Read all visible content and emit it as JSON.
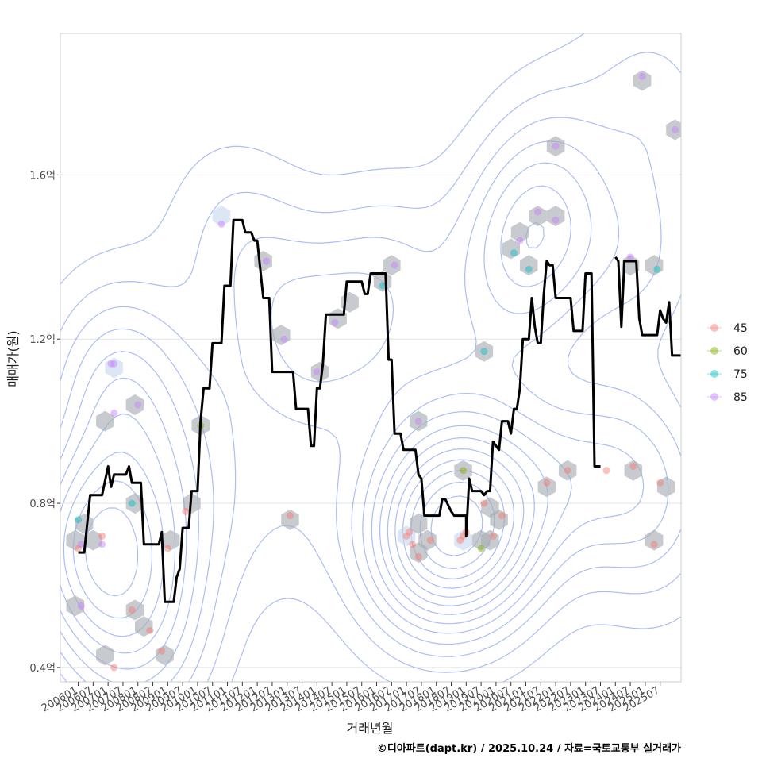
{
  "chart_data": {
    "type": "line",
    "title": "",
    "xlabel": "거래년월",
    "ylabel": "매매가(원)",
    "caption": "©디아파트(dapt.kr) / 2025.10.24 / 자료=국토교통부 실거래가",
    "x_ticks": [
      "200601",
      "200607",
      "200701",
      "200707",
      "200801",
      "200807",
      "200901",
      "200907",
      "201001",
      "201007",
      "201101",
      "201107",
      "201201",
      "201207",
      "201301",
      "201307",
      "201401",
      "201407",
      "201501",
      "201507",
      "201601",
      "201607",
      "201701",
      "201707",
      "201801",
      "201807",
      "201901",
      "201907",
      "202001",
      "202007",
      "202101",
      "202107",
      "202201",
      "202207",
      "202301",
      "202307",
      "202401",
      "202407",
      "202501",
      "202507"
    ],
    "y_ticks": [
      {
        "value": 0.4,
        "label": "0.4억"
      },
      {
        "value": 0.8,
        "label": "0.8억"
      },
      {
        "value": 1.2,
        "label": "1.2억"
      },
      {
        "value": 1.6,
        "label": "1.6억"
      }
    ],
    "xlim": [
      2005.4,
      2026.2
    ],
    "ylim": [
      0.365,
      1.945
    ],
    "grid": true,
    "legend_position": "right",
    "legend": [
      {
        "label": "45",
        "color": "#F8766D"
      },
      {
        "label": "60",
        "color": "#7CAE00"
      },
      {
        "label": "75",
        "color": "#00BFC4"
      },
      {
        "label": "85",
        "color": "#C77CFF"
      }
    ],
    "line_color": "#000000",
    "contour_color": "#8fa8ee",
    "hex_color": "#a9aeb3",
    "series_avg": [
      [
        2006.0,
        0.68
      ],
      [
        2006.2,
        0.68
      ],
      [
        2006.4,
        0.82
      ],
      [
        2006.8,
        0.82
      ],
      [
        2007.0,
        0.89
      ],
      [
        2007.1,
        0.84
      ],
      [
        2007.2,
        0.87
      ],
      [
        2007.6,
        0.87
      ],
      [
        2007.7,
        0.89
      ],
      [
        2007.8,
        0.85
      ],
      [
        2008.1,
        0.85
      ],
      [
        2008.2,
        0.7
      ],
      [
        2008.7,
        0.7
      ],
      [
        2008.8,
        0.73
      ],
      [
        2008.9,
        0.56
      ],
      [
        2009.2,
        0.56
      ],
      [
        2009.3,
        0.62
      ],
      [
        2009.4,
        0.64
      ],
      [
        2009.5,
        0.74
      ],
      [
        2009.7,
        0.74
      ],
      [
        2009.8,
        0.83
      ],
      [
        2010.0,
        0.83
      ],
      [
        2010.1,
        1.0
      ],
      [
        2010.2,
        1.08
      ],
      [
        2010.4,
        1.08
      ],
      [
        2010.5,
        1.19
      ],
      [
        2010.8,
        1.19
      ],
      [
        2010.9,
        1.33
      ],
      [
        2011.1,
        1.33
      ],
      [
        2011.2,
        1.49
      ],
      [
        2011.5,
        1.49
      ],
      [
        2011.6,
        1.46
      ],
      [
        2011.8,
        1.46
      ],
      [
        2011.9,
        1.44
      ],
      [
        2012.0,
        1.44
      ],
      [
        2012.1,
        1.37
      ],
      [
        2012.2,
        1.3
      ],
      [
        2012.4,
        1.3
      ],
      [
        2012.5,
        1.12
      ],
      [
        2013.2,
        1.12
      ],
      [
        2013.3,
        1.03
      ],
      [
        2013.7,
        1.03
      ],
      [
        2013.8,
        0.94
      ],
      [
        2013.9,
        0.94
      ],
      [
        2014.0,
        1.08
      ],
      [
        2014.1,
        1.08
      ],
      [
        2014.2,
        1.14
      ],
      [
        2014.3,
        1.26
      ],
      [
        2014.9,
        1.26
      ],
      [
        2015.0,
        1.34
      ],
      [
        2015.5,
        1.34
      ],
      [
        2015.6,
        1.31
      ],
      [
        2015.7,
        1.31
      ],
      [
        2015.8,
        1.36
      ],
      [
        2016.3,
        1.36
      ],
      [
        2016.4,
        1.15
      ],
      [
        2016.5,
        1.15
      ],
      [
        2016.6,
        0.97
      ],
      [
        2016.8,
        0.97
      ],
      [
        2016.9,
        0.93
      ],
      [
        2017.3,
        0.93
      ],
      [
        2017.4,
        0.87
      ],
      [
        2017.5,
        0.86
      ],
      [
        2017.6,
        0.77
      ],
      [
        2018.1,
        0.77
      ],
      [
        2018.2,
        0.81
      ],
      [
        2018.3,
        0.81
      ],
      [
        2018.5,
        0.78
      ],
      [
        2018.6,
        0.77
      ],
      [
        2019.0,
        0.77
      ],
      [
        2019.0,
        0.72
      ],
      [
        2019.1,
        0.86
      ],
      [
        2019.2,
        0.83
      ],
      [
        2019.5,
        0.83
      ],
      [
        2019.6,
        0.82
      ],
      [
        2019.7,
        0.83
      ],
      [
        2019.8,
        0.83
      ],
      [
        2019.9,
        0.95
      ],
      [
        2020.1,
        0.93
      ],
      [
        2020.2,
        1.0
      ],
      [
        2020.4,
        1.0
      ],
      [
        2020.5,
        0.97
      ],
      [
        2020.6,
        1.03
      ],
      [
        2020.7,
        1.03
      ],
      [
        2020.8,
        1.08
      ],
      [
        2020.9,
        1.2
      ],
      [
        2021.1,
        1.2
      ],
      [
        2021.2,
        1.3
      ],
      [
        2021.3,
        1.23
      ],
      [
        2021.4,
        1.19
      ],
      [
        2021.5,
        1.19
      ],
      [
        2021.6,
        1.31
      ],
      [
        2021.7,
        1.39
      ],
      [
        2021.8,
        1.38
      ],
      [
        2021.9,
        1.38
      ],
      [
        2022.0,
        1.3
      ],
      [
        2022.5,
        1.3
      ],
      [
        2022.6,
        1.22
      ],
      [
        2022.9,
        1.22
      ],
      [
        2023.0,
        1.36
      ],
      [
        2023.2,
        1.36
      ],
      [
        2023.3,
        0.89
      ],
      [
        2023.5,
        0.89
      ]
    ],
    "series_avg_2": [
      [
        2024.0,
        1.4
      ],
      [
        2024.1,
        1.39
      ],
      [
        2024.2,
        1.23
      ],
      [
        2024.3,
        1.39
      ],
      [
        2024.7,
        1.39
      ],
      [
        2024.8,
        1.25
      ],
      [
        2024.9,
        1.21
      ],
      [
        2025.4,
        1.21
      ],
      [
        2025.5,
        1.27
      ],
      [
        2025.6,
        1.25
      ],
      [
        2025.7,
        1.24
      ],
      [
        2025.8,
        1.29
      ],
      [
        2025.9,
        1.16
      ],
      [
        2026.2,
        1.16
      ]
    ],
    "points": [
      {
        "x": 2006.0,
        "y": 0.69,
        "size": "45"
      },
      {
        "x": 2006.0,
        "y": 0.76,
        "size": "75"
      },
      {
        "x": 2006.1,
        "y": 0.7,
        "size": "85"
      },
      {
        "x": 2006.1,
        "y": 0.55,
        "size": "85"
      },
      {
        "x": 2006.8,
        "y": 0.7,
        "size": "85"
      },
      {
        "x": 2006.8,
        "y": 0.72,
        "size": "45"
      },
      {
        "x": 2007.1,
        "y": 1.14,
        "size": "85"
      },
      {
        "x": 2007.2,
        "y": 1.14,
        "size": "85"
      },
      {
        "x": 2007.2,
        "y": 1.02,
        "size": "85"
      },
      {
        "x": 2007.2,
        "y": 0.4,
        "size": "45"
      },
      {
        "x": 2007.8,
        "y": 0.8,
        "size": "75"
      },
      {
        "x": 2007.8,
        "y": 0.54,
        "size": "45"
      },
      {
        "x": 2008.0,
        "y": 1.04,
        "size": "85"
      },
      {
        "x": 2008.4,
        "y": 0.49,
        "size": "45"
      },
      {
        "x": 2008.8,
        "y": 0.44,
        "size": "45"
      },
      {
        "x": 2009.0,
        "y": 0.69,
        "size": "45"
      },
      {
        "x": 2009.6,
        "y": 0.78,
        "size": "45"
      },
      {
        "x": 2010.1,
        "y": 0.99,
        "size": "60"
      },
      {
        "x": 2010.8,
        "y": 1.48,
        "size": "85"
      },
      {
        "x": 2012.3,
        "y": 1.39,
        "size": "85"
      },
      {
        "x": 2012.9,
        "y": 1.2,
        "size": "85"
      },
      {
        "x": 2013.1,
        "y": 0.77,
        "size": "45"
      },
      {
        "x": 2014.0,
        "y": 1.12,
        "size": "85"
      },
      {
        "x": 2014.6,
        "y": 1.24,
        "size": "85"
      },
      {
        "x": 2016.2,
        "y": 1.33,
        "size": "75"
      },
      {
        "x": 2016.6,
        "y": 1.38,
        "size": "85"
      },
      {
        "x": 2017.0,
        "y": 0.72,
        "size": "45"
      },
      {
        "x": 2017.1,
        "y": 0.73,
        "size": "45"
      },
      {
        "x": 2017.2,
        "y": 0.7,
        "size": "45"
      },
      {
        "x": 2017.4,
        "y": 0.67,
        "size": "45"
      },
      {
        "x": 2017.4,
        "y": 1.0,
        "size": "85"
      },
      {
        "x": 2017.8,
        "y": 0.71,
        "size": "45"
      },
      {
        "x": 2018.8,
        "y": 0.71,
        "size": "45"
      },
      {
        "x": 2018.9,
        "y": 0.72,
        "size": "45"
      },
      {
        "x": 2019.0,
        "y": 0.73,
        "size": "45"
      },
      {
        "x": 2018.9,
        "y": 0.88,
        "size": "60"
      },
      {
        "x": 2019.5,
        "y": 0.69,
        "size": "60"
      },
      {
        "x": 2019.6,
        "y": 0.8,
        "size": "45"
      },
      {
        "x": 2019.6,
        "y": 1.17,
        "size": "75"
      },
      {
        "x": 2019.9,
        "y": 0.72,
        "size": "45"
      },
      {
        "x": 2020.2,
        "y": 0.77,
        "size": "45"
      },
      {
        "x": 2020.6,
        "y": 1.41,
        "size": "75"
      },
      {
        "x": 2020.8,
        "y": 1.44,
        "size": "85"
      },
      {
        "x": 2021.1,
        "y": 1.37,
        "size": "75"
      },
      {
        "x": 2021.4,
        "y": 1.51,
        "size": "85"
      },
      {
        "x": 2021.7,
        "y": 0.85,
        "size": "45"
      },
      {
        "x": 2022.0,
        "y": 1.49,
        "size": "85"
      },
      {
        "x": 2022.0,
        "y": 1.67,
        "size": "85"
      },
      {
        "x": 2022.4,
        "y": 0.88,
        "size": "45"
      },
      {
        "x": 2023.7,
        "y": 0.88,
        "size": "45"
      },
      {
        "x": 2024.5,
        "y": 1.4,
        "size": "85"
      },
      {
        "x": 2024.6,
        "y": 0.89,
        "size": "45"
      },
      {
        "x": 2024.9,
        "y": 1.84,
        "size": "85"
      },
      {
        "x": 2025.3,
        "y": 0.7,
        "size": "45"
      },
      {
        "x": 2025.4,
        "y": 1.37,
        "size": "75"
      },
      {
        "x": 2025.5,
        "y": 0.85,
        "size": "45"
      },
      {
        "x": 2026.0,
        "y": 1.71,
        "size": "85"
      }
    ],
    "hexbins": [
      {
        "x": 2005.9,
        "y": 0.71,
        "n": 3
      },
      {
        "x": 2006.2,
        "y": 0.75,
        "n": 3
      },
      {
        "x": 2006.5,
        "y": 0.71,
        "n": 2
      },
      {
        "x": 2005.9,
        "y": 0.55,
        "n": 2
      },
      {
        "x": 2006.9,
        "y": 1.0,
        "n": 2
      },
      {
        "x": 2007.2,
        "y": 1.13,
        "n": 1
      },
      {
        "x": 2006.9,
        "y": 0.43,
        "n": 2
      },
      {
        "x": 2007.9,
        "y": 1.04,
        "n": 2
      },
      {
        "x": 2007.9,
        "y": 0.8,
        "n": 2
      },
      {
        "x": 2007.9,
        "y": 0.54,
        "n": 2
      },
      {
        "x": 2008.2,
        "y": 0.5,
        "n": 2
      },
      {
        "x": 2008.9,
        "y": 0.43,
        "n": 2
      },
      {
        "x": 2009.1,
        "y": 0.71,
        "n": 2
      },
      {
        "x": 2009.8,
        "y": 0.8,
        "n": 2
      },
      {
        "x": 2010.1,
        "y": 0.99,
        "n": 2
      },
      {
        "x": 2010.8,
        "y": 1.5,
        "n": 1
      },
      {
        "x": 2012.2,
        "y": 1.39,
        "n": 2
      },
      {
        "x": 2012.8,
        "y": 1.21,
        "n": 2
      },
      {
        "x": 2013.1,
        "y": 0.76,
        "n": 2
      },
      {
        "x": 2014.1,
        "y": 1.12,
        "n": 2
      },
      {
        "x": 2014.7,
        "y": 1.25,
        "n": 2
      },
      {
        "x": 2015.1,
        "y": 1.29,
        "n": 2
      },
      {
        "x": 2016.2,
        "y": 1.34,
        "n": 2
      },
      {
        "x": 2016.5,
        "y": 1.38,
        "n": 2
      },
      {
        "x": 2017.0,
        "y": 0.72,
        "n": 1
      },
      {
        "x": 2017.4,
        "y": 0.75,
        "n": 2
      },
      {
        "x": 2017.7,
        "y": 0.71,
        "n": 2
      },
      {
        "x": 2017.4,
        "y": 0.68,
        "n": 2
      },
      {
        "x": 2017.4,
        "y": 1.0,
        "n": 2
      },
      {
        "x": 2018.9,
        "y": 0.88,
        "n": 2
      },
      {
        "x": 2018.9,
        "y": 0.71,
        "n": 1
      },
      {
        "x": 2019.5,
        "y": 0.71,
        "n": 2
      },
      {
        "x": 2019.8,
        "y": 0.71,
        "n": 2
      },
      {
        "x": 2019.8,
        "y": 0.79,
        "n": 2
      },
      {
        "x": 2020.1,
        "y": 0.76,
        "n": 2
      },
      {
        "x": 2019.6,
        "y": 1.17,
        "n": 2
      },
      {
        "x": 2020.5,
        "y": 1.42,
        "n": 2
      },
      {
        "x": 2020.8,
        "y": 1.46,
        "n": 2
      },
      {
        "x": 2021.1,
        "y": 1.38,
        "n": 2
      },
      {
        "x": 2021.4,
        "y": 1.5,
        "n": 2
      },
      {
        "x": 2021.7,
        "y": 0.84,
        "n": 2
      },
      {
        "x": 2022.0,
        "y": 1.5,
        "n": 2
      },
      {
        "x": 2022.0,
        "y": 1.67,
        "n": 2
      },
      {
        "x": 2022.4,
        "y": 0.88,
        "n": 2
      },
      {
        "x": 2024.5,
        "y": 1.38,
        "n": 2
      },
      {
        "x": 2024.6,
        "y": 0.88,
        "n": 2
      },
      {
        "x": 2024.9,
        "y": 1.83,
        "n": 2
      },
      {
        "x": 2025.3,
        "y": 0.71,
        "n": 2
      },
      {
        "x": 2025.3,
        "y": 1.38,
        "n": 2
      },
      {
        "x": 2025.7,
        "y": 0.84,
        "n": 2
      },
      {
        "x": 2026.0,
        "y": 1.71,
        "n": 2
      }
    ]
  }
}
